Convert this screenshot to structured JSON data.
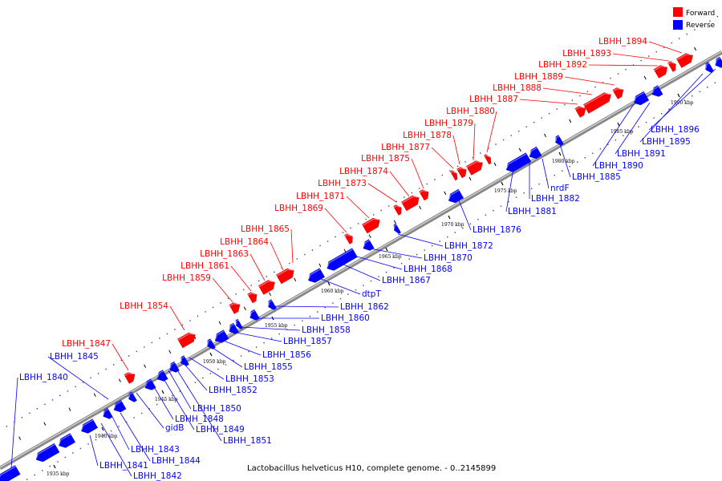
{
  "legend": [
    {
      "label": "Forward",
      "color": "#ff0000"
    },
    {
      "label": "Reverse",
      "color": "#0000ff"
    }
  ],
  "footer": "Lactobacillus helveticus H10, complete genome. - 0..2145899",
  "tick_labels": [
    "1935 kbp",
    "1940 kbp",
    "1945 kbp",
    "1950 kbp",
    "1955 kbp",
    "1960 kbp",
    "1965 kbp",
    "1970 kbp",
    "1975 kbp",
    "1980 kbp",
    "1985 kbp",
    "1990 kbp"
  ],
  "colors": {
    "forward": "#ff0000",
    "reverse": "#0000ff",
    "axis": "#888888"
  },
  "forward_genes": [
    "LBHH_1847",
    "LBHH_1854",
    "LBHH_1859",
    "LBHH_1861",
    "LBHH_1863",
    "LBHH_1864",
    "LBHH_1865",
    "LBHH_1869",
    "LBHH_1871",
    "LBHH_1873",
    "LBHH_1874",
    "LBHH_1875",
    "LBHH_1877",
    "LBHH_1878",
    "LBHH_1879",
    "LBHH_1880",
    "LBHH_1887",
    "LBHH_1888",
    "LBHH_1889",
    "LBHH_1892",
    "LBHH_1893",
    "LBHH_1894"
  ],
  "reverse_genes": [
    "LBHH_1840",
    "LBHH_1841",
    "LBHH_1842",
    "LBHH_1843",
    "LBHH_1844",
    "LBHH_1845",
    "gidB",
    "LBHH_1848",
    "LBHH_1849",
    "LBHH_1850",
    "LBHH_1851",
    "LBHH_1852",
    "LBHH_1853",
    "LBHH_1855",
    "LBHH_1856",
    "LBHH_1857",
    "LBHH_1858",
    "LBHH_1860",
    "LBHH_1862",
    "dtpT",
    "LBHH_1867",
    "LBHH_1868",
    "LBHH_1870",
    "LBHH_1872",
    "LBHH_1876",
    "LBHH_1881",
    "LBHH_1882",
    "nrdF",
    "LBHH_1885",
    "LBHH_1890",
    "LBHH_1891",
    "LBHH_1895",
    "LBHH_1896"
  ]
}
